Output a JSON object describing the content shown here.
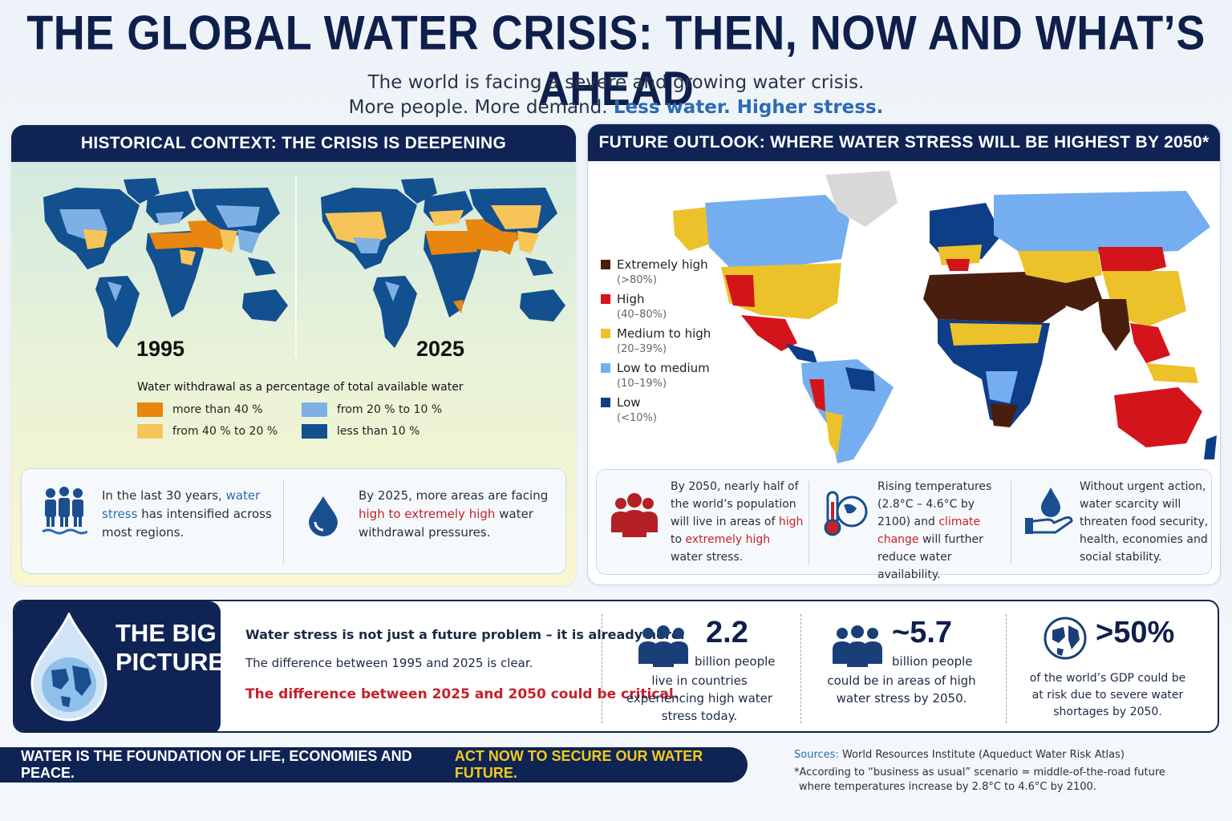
{
  "header": {
    "title": "THE GLOBAL WATER CRISIS: THEN, NOW AND WHAT’S AHEAD",
    "subtitle_line1": "The world is facing a severe and growing water crisis.",
    "subtitle_line2_plain": "More people. More demand.",
    "subtitle_line2_highlight": "Less water. Higher stress."
  },
  "historical": {
    "heading": "HISTORICAL CONTEXT: THE CRISIS IS DEEPENING",
    "year_1995": "1995",
    "year_2025": "2025",
    "legend_title": "Water withdrawal as a percentage of total available water",
    "legend": [
      {
        "label": "more than 40 %",
        "color": "#e8860f"
      },
      {
        "label": "from 40 % to 20 %",
        "color": "#f7c45a"
      },
      {
        "label": "from 20 % to 10 %",
        "color": "#7fb0e3"
      },
      {
        "label": "less than 10 %",
        "color": "#12508f"
      }
    ],
    "card1": {
      "pre": "In the last 30 years,",
      "hl": "water stress",
      "post": "has intensified across most regions."
    },
    "card2": {
      "pre": "By 2025, more areas are facing",
      "hl": "high to extremely high",
      "post": "water withdrawal pressures."
    }
  },
  "future": {
    "heading": "FUTURE OUTLOOK: WHERE WATER STRESS WILL BE HIGHEST BY 2050*",
    "legend": [
      {
        "label": "Extremely high",
        "range": "(>80%)",
        "color": "#4a1e0e"
      },
      {
        "label": "High",
        "range": "(40–80%)",
        "color": "#d4141b"
      },
      {
        "label": "Medium to high",
        "range": "(20–39%)",
        "color": "#ecc22a"
      },
      {
        "label": "Low to medium",
        "range": "(10–19%)",
        "color": "#74aef0"
      },
      {
        "label": "Low",
        "range": "(<10%)",
        "color": "#0f3e88"
      }
    ],
    "card1": {
      "pre": "By 2050, nearly half of the world’s population will live in areas of",
      "hl1": "high",
      "mid": "to",
      "hl2": "extremely high",
      "post": "water stress."
    },
    "card2": {
      "pre": "Rising temperatures (2.8°C – 4.6°C by 2100) and",
      "hl": "climate change",
      "post": "will further reduce water availability."
    },
    "card3": {
      "text": "Without urgent action, water scarcity will threaten food security, health, economies and social stability."
    }
  },
  "big_picture": {
    "title_line1": "THE BIG",
    "title_line2": "PICTURE",
    "line1": "Water stress is not just a future problem – it is already here.",
    "line2": "The difference between 1995 and 2025 is clear.",
    "line3": "The difference between 2025 and 2050 could be critical.",
    "stats": [
      {
        "value": "2.2",
        "unit": "billion people",
        "desc": "live in countries experiencing high water stress today."
      },
      {
        "value": "~5.7",
        "unit": "billion people",
        "desc": "could be in areas of high water stress by 2050."
      },
      {
        "value": ">50%",
        "unit": "",
        "desc": "of the world’s GDP could be at risk due to severe water shortages by 2050."
      }
    ]
  },
  "footer": {
    "banner_white": "WATER IS THE FOUNDATION OF LIFE, ECONOMIES AND PEACE.",
    "banner_yellow": "ACT NOW TO SECURE OUR WATER FUTURE.",
    "sources_label": "Sources:",
    "sources_text": "World Resources Institute (Aqueduct Water Risk Atlas)",
    "footnote1": "*According to “business as usual” scenario = middle-of-the-road future",
    "footnote2": "where temperatures increase by 2.8°C to 4.6°C by 2100."
  }
}
